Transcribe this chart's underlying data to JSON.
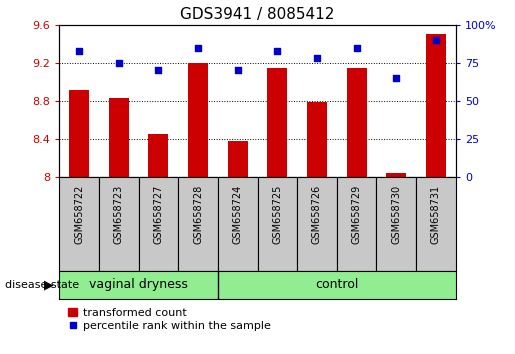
{
  "title": "GDS3941 / 8085412",
  "samples": [
    "GSM658722",
    "GSM658723",
    "GSM658727",
    "GSM658728",
    "GSM658724",
    "GSM658725",
    "GSM658726",
    "GSM658729",
    "GSM658730",
    "GSM658731"
  ],
  "red_values": [
    8.91,
    8.83,
    8.45,
    9.2,
    8.38,
    9.15,
    8.79,
    9.15,
    8.04,
    9.5
  ],
  "blue_values": [
    83,
    75,
    70,
    85,
    70,
    83,
    78,
    85,
    65,
    90
  ],
  "ylim_left": [
    8.0,
    9.6
  ],
  "ylim_right": [
    0,
    100
  ],
  "yticks_left": [
    8.0,
    8.4,
    8.8,
    9.2,
    9.6
  ],
  "yticks_right": [
    0,
    25,
    50,
    75,
    100
  ],
  "ytick_labels_left": [
    "8",
    "8.4",
    "8.8",
    "9.2",
    "9.6"
  ],
  "ytick_labels_right": [
    "0",
    "25",
    "50",
    "75",
    "100%"
  ],
  "left_color": "#cc0000",
  "right_color": "#0000cc",
  "bar_color": "#cc0000",
  "marker_color": "#0000cc",
  "group1_label": "vaginal dryness",
  "group2_label": "control",
  "group1_count": 4,
  "group2_count": 6,
  "disease_state_label": "disease state",
  "legend_bar_label": "transformed count",
  "legend_marker_label": "percentile rank within the sample",
  "group_bg_color": "#90ee90",
  "tick_area_bg": "#c8c8c8",
  "grid_color": "#000000",
  "base_value": 8.0,
  "fig_width": 5.15,
  "fig_height": 3.54
}
